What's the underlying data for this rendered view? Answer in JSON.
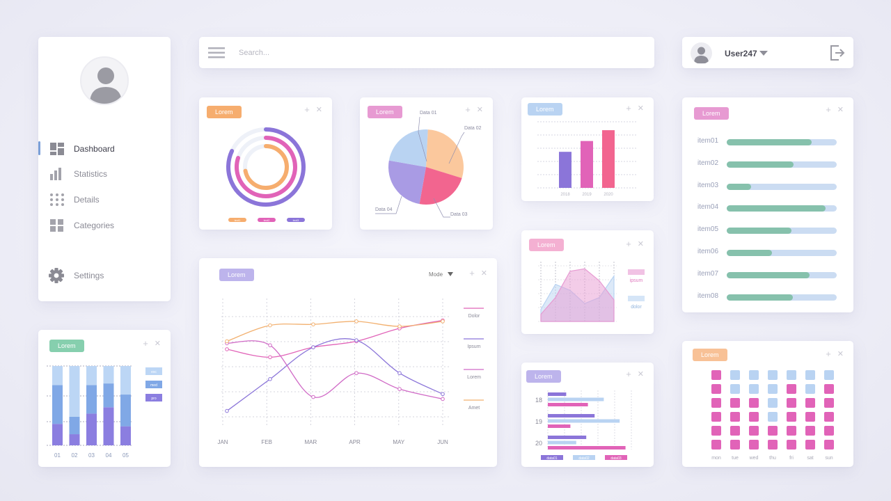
{
  "sidebar": {
    "nav": [
      {
        "label": "Dashboard",
        "icon": "dashboard-icon",
        "active": true
      },
      {
        "label": "Statistics",
        "icon": "bar-chart-icon",
        "active": false
      },
      {
        "label": "Details",
        "icon": "dots-grid-icon",
        "active": false
      },
      {
        "label": "Categories",
        "icon": "grid-icon",
        "active": false
      }
    ],
    "settings_label": "Settings"
  },
  "search": {
    "placeholder": "Search..."
  },
  "user": {
    "name": "User247"
  },
  "colors": {
    "purple": "#8b75d9",
    "pink": "#e163b8",
    "magenta": "#f2658f",
    "orange": "#f6ad6e",
    "peach": "#fbc89d",
    "lightblue": "#b9d3f2",
    "green": "#86c1ac",
    "blue": "#7d9fe0"
  },
  "cards": {
    "rings": {
      "tag": "Lorem",
      "legend": [
        "text1",
        "text2",
        "text3"
      ],
      "chart_data": {
        "type": "ring",
        "series": [
          {
            "name": "text1",
            "value": 0.72,
            "color": "#f6ad6e"
          },
          {
            "name": "text2",
            "value": 0.8,
            "color": "#e163b8"
          },
          {
            "name": "text3",
            "value": 0.82,
            "color": "#8b75d9"
          }
        ]
      }
    },
    "pie": {
      "tag": "Lorem",
      "chart_data": {
        "type": "pie",
        "slices": [
          {
            "label": "Data 01",
            "value": 29,
            "color": "#fbc89d"
          },
          {
            "label": "Data 02",
            "value": 23,
            "color": "#f2658f"
          },
          {
            "label": "Data 03",
            "value": 25,
            "color": "#a99be4"
          },
          {
            "label": "Data 04",
            "value": 23,
            "color": "#b9d3f2"
          }
        ]
      }
    },
    "years": {
      "tag": "Lorem",
      "chart_data": {
        "type": "bar",
        "categories": [
          "2018",
          "2019",
          "2020"
        ],
        "values": [
          60,
          78,
          96
        ],
        "ylim": [
          0,
          110
        ],
        "colors": [
          "#8b75d9",
          "#e163b8",
          "#f2658f"
        ],
        "grid": true
      }
    },
    "progress": {
      "tag": "Lorem",
      "items": [
        {
          "label": "item01",
          "value": 0.77
        },
        {
          "label": "item02",
          "value": 0.61
        },
        {
          "label": "item03",
          "value": 0.22
        },
        {
          "label": "item04",
          "value": 0.9
        },
        {
          "label": "item05",
          "value": 0.59
        },
        {
          "label": "item06",
          "value": 0.41
        },
        {
          "label": "item07",
          "value": 0.75
        },
        {
          "label": "item08",
          "value": 0.6
        }
      ]
    },
    "lines": {
      "tag": "Lorem",
      "mode_label": "Mode",
      "chart_data": {
        "type": "line",
        "x": [
          "JAN",
          "FEB",
          "MAR",
          "APR",
          "MAY",
          "JUN"
        ],
        "ylim": [
          0,
          100
        ],
        "series": [
          {
            "name": "Dolor",
            "color": "#e163b8",
            "values": [
              70,
              62,
              72,
              78,
              91,
              99
            ]
          },
          {
            "name": "Ipsum",
            "color": "#8b75d9",
            "values": [
              8,
              40,
              72,
              79,
              46,
              25
            ]
          },
          {
            "name": "Lorem",
            "color": "#d06ac6",
            "values": [
              76,
              74,
              22,
              46,
              30,
              20
            ]
          },
          {
            "name": "Amet",
            "color": "#f2b06f",
            "values": [
              78,
              94,
              95,
              98,
              93,
              98
            ]
          }
        ]
      }
    },
    "area": {
      "tag": "Lorem",
      "legend": [
        "ipsum",
        "dolor"
      ],
      "chart_data": {
        "type": "area",
        "ylim": [
          0,
          100
        ],
        "series": [
          {
            "name": "ipsum",
            "color": "#e79ad2",
            "values": [
              12,
              40,
              84,
              88,
              68,
              36
            ]
          },
          {
            "name": "dolor",
            "color": "#b9d3f2",
            "values": [
              20,
              62,
              52,
              30,
              40,
              76
            ]
          }
        ]
      }
    },
    "hbars": {
      "tag": "Lorem",
      "legend": [
        "data01",
        "data02",
        "data03"
      ],
      "chart_data": {
        "type": "bar",
        "orientation": "horizontal",
        "categories": [
          "18",
          "19",
          "20"
        ],
        "xlim": [
          0,
          100
        ],
        "series": [
          {
            "name": "data01",
            "color": "#8b75d9",
            "values": [
              22,
              56,
              46
            ]
          },
          {
            "name": "data02",
            "color": "#b9d3f2",
            "values": [
              67,
              86,
              34
            ]
          },
          {
            "name": "data03",
            "color": "#e163b8",
            "values": [
              48,
              27,
              93
            ]
          }
        ]
      }
    },
    "stacked": {
      "tag": "Lorem",
      "legend": [
        "exc",
        "med",
        "pro"
      ],
      "chart_data": {
        "type": "bar",
        "stacked": true,
        "categories": [
          "01",
          "02",
          "03",
          "04",
          "05"
        ],
        "ylim": [
          0,
          100
        ],
        "series": [
          {
            "name": "pro",
            "color": "#8b7ee0",
            "values": [
              27,
              14,
              40,
              48,
              24
            ]
          },
          {
            "name": "med",
            "color": "#80a8e6",
            "values": [
              49,
              22,
              36,
              30,
              40
            ]
          },
          {
            "name": "exc",
            "color": "#bcd6f5",
            "values": [
              24,
              64,
              24,
              22,
              36
            ]
          }
        ]
      }
    },
    "heatmap": {
      "tag": "Lorem",
      "days": [
        "mon",
        "tue",
        "wed",
        "thu",
        "fri",
        "sat",
        "sun"
      ],
      "chart_data": {
        "type": "heatmap",
        "rows": [
          [
            1,
            0,
            0,
            0,
            0,
            0,
            0
          ],
          [
            1,
            0,
            0,
            0,
            1,
            0,
            1
          ],
          [
            1,
            1,
            1,
            0,
            1,
            1,
            1
          ],
          [
            1,
            1,
            1,
            0,
            1,
            1,
            1
          ],
          [
            1,
            1,
            1,
            1,
            1,
            1,
            1
          ],
          [
            1,
            1,
            1,
            1,
            1,
            1,
            1
          ]
        ],
        "colors": {
          "0": "#b9d3f2",
          "1": "#e163b8"
        }
      }
    }
  }
}
